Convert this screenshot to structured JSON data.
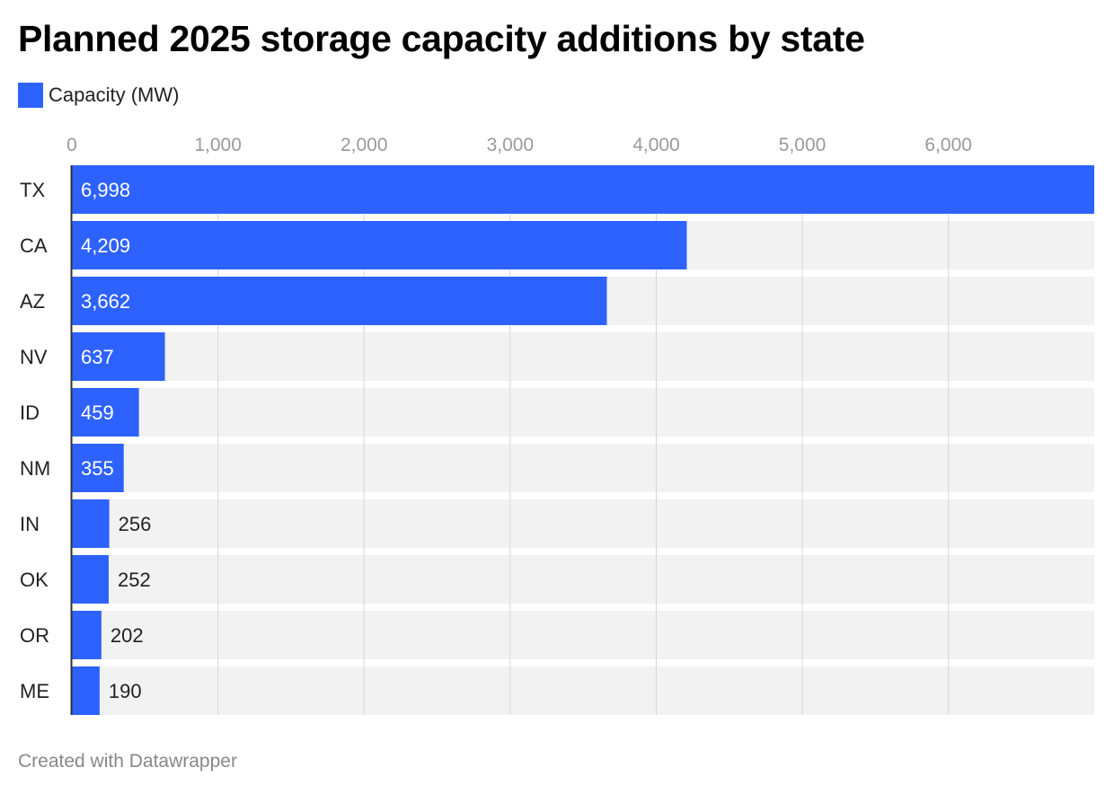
{
  "title": "Planned 2025 storage capacity additions by state",
  "footer": "Created with Datawrapper",
  "colors": {
    "bar": "#2e62ff",
    "track": "#f2f2f2",
    "grid": "#d6d6d6",
    "axis": "#333333"
  },
  "chart_data": {
    "type": "bar",
    "orientation": "horizontal",
    "categories": [
      "TX",
      "CA",
      "AZ",
      "NV",
      "ID",
      "NM",
      "IN",
      "OK",
      "OR",
      "ME"
    ],
    "series": [
      {
        "name": "Capacity (MW)",
        "values": [
          6998,
          4209,
          3662,
          637,
          459,
          355,
          256,
          252,
          202,
          190
        ]
      }
    ],
    "value_labels": [
      "6,998",
      "4,209",
      "3,662",
      "637",
      "459",
      "355",
      "256",
      "252",
      "202",
      "190"
    ],
    "xlim": [
      0,
      6998
    ],
    "xticks": [
      0,
      1000,
      2000,
      3000,
      4000,
      5000,
      6000
    ],
    "xtick_labels": [
      "0",
      "1,000",
      "2,000",
      "3,000",
      "4,000",
      "5,000",
      "6,000"
    ],
    "grid": true,
    "legend": "top-left"
  }
}
